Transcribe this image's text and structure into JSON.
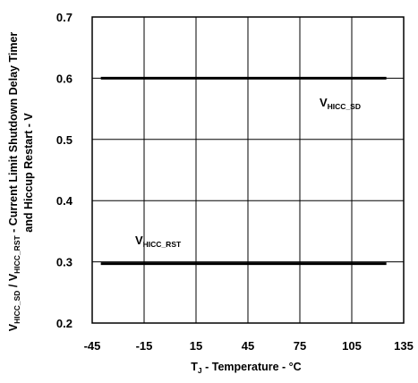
{
  "chart_data": {
    "type": "line",
    "x_ticks": [
      -45,
      -15,
      15,
      45,
      75,
      105,
      135
    ],
    "y_ticks": [
      0.2,
      0.3,
      0.4,
      0.5,
      0.6,
      0.7
    ],
    "xlim": [
      -45,
      135
    ],
    "ylim": [
      0.2,
      0.7
    ],
    "grid": true,
    "xlabel": {
      "main": "T",
      "sub": "J",
      "rest": " - Temperature - °C"
    },
    "ylabel": {
      "line1": {
        "p1": "V",
        "s1": "HICC_SD",
        "p2": " / V",
        "s2": "HICC_RST",
        "p3": " - Current Limit Shutdown Delay Timer"
      },
      "line2": "and Hiccup Restart - V"
    },
    "series": [
      {
        "name": "V",
        "name_sub": "HICC_SD",
        "x": [
          -40,
          125
        ],
        "y": [
          0.6,
          0.6
        ]
      },
      {
        "name": "V",
        "name_sub": "HICC_RST",
        "x": [
          -40,
          125
        ],
        "y": [
          0.297,
          0.297
        ]
      }
    ],
    "colors": {
      "line": "#000000",
      "grid": "#000000"
    }
  }
}
